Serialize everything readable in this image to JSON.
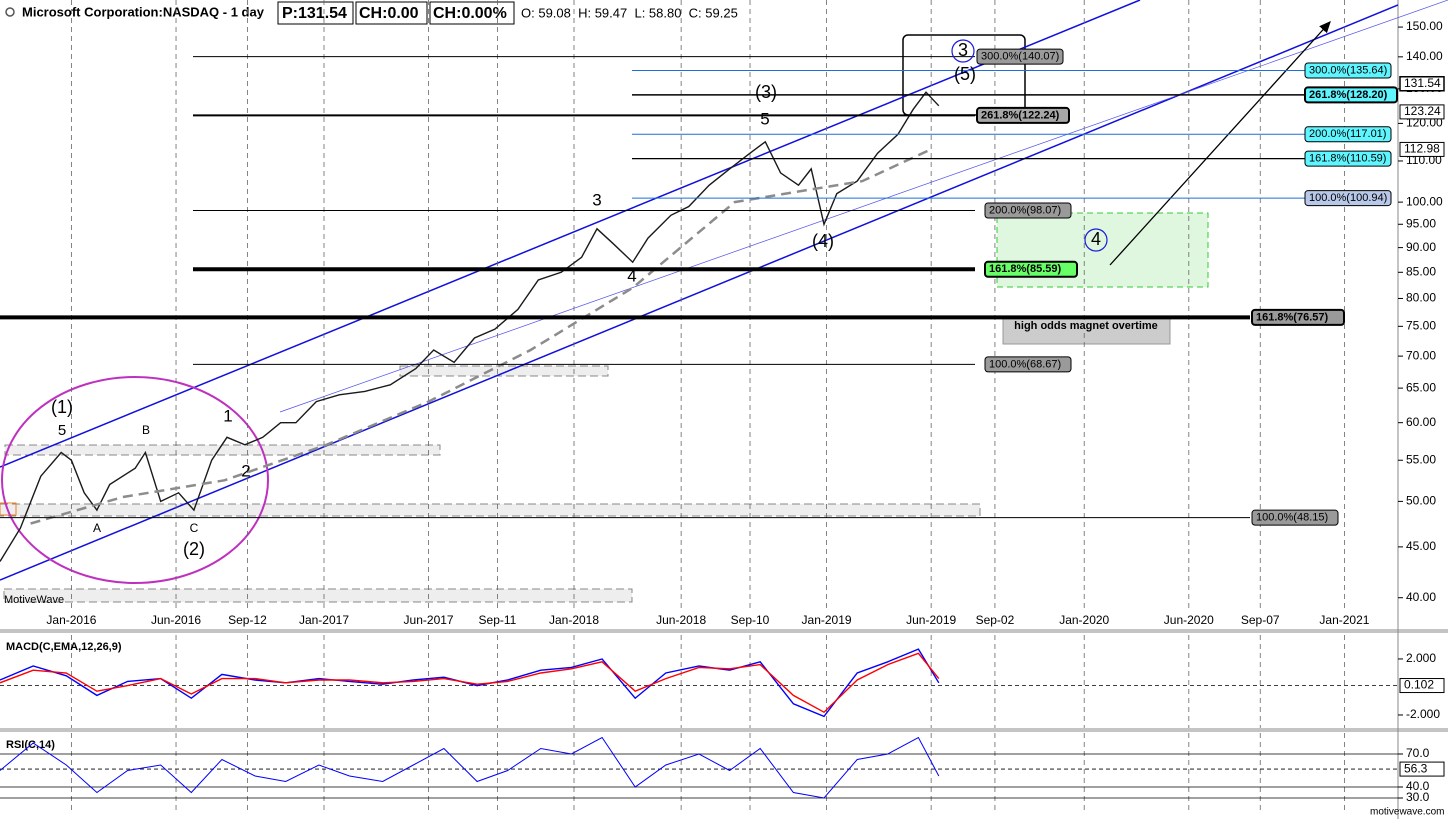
{
  "header": {
    "title": "Microsoft Corporation:NASDAQ - 1 day",
    "price": "P:131.54",
    "change": "CH:0.00",
    "change_pct": "CH:0.00%",
    "ohlc": "O: 59.08  H: 59.47  L: 58.80  C: 59.25"
  },
  "watermark": "MotiveWave",
  "footer": "motivewave.com",
  "chart_data": [
    {
      "type": "line",
      "log_scale": true,
      "grid": "x",
      "series": [
        {
          "color": "#1a1a1a",
          "x": [
            2015.72,
            2015.8,
            2015.88,
            2015.96,
            2016.0,
            2016.05,
            2016.1,
            2016.15,
            2016.25,
            2016.29,
            2016.35,
            2016.42,
            2016.48,
            2016.55,
            2016.61,
            2016.68,
            2016.75,
            2016.82,
            2016.88,
            2016.96,
            2017.05,
            2017.15,
            2017.25,
            2017.35,
            2017.42,
            2017.5,
            2017.58,
            2017.66,
            2017.75,
            2017.83,
            2017.92,
            2018.0,
            2018.06,
            2018.12,
            2018.2,
            2018.26,
            2018.35,
            2018.42,
            2018.5,
            2018.58,
            2018.66,
            2018.72,
            2018.78,
            2018.85,
            2018.9,
            2018.95,
            2019.0,
            2019.08,
            2019.16,
            2019.24,
            2019.3,
            2019.35,
            2019.4
          ],
          "values": [
            43.5,
            47,
            53,
            56,
            55,
            51,
            49,
            52,
            54,
            56,
            50,
            51,
            49,
            55,
            58,
            57,
            58,
            60,
            60,
            63,
            64,
            64.5,
            65.5,
            68,
            71,
            69,
            73,
            74.5,
            78,
            83.5,
            85,
            88,
            94,
            91,
            87,
            92,
            97,
            99,
            104,
            108,
            112,
            115,
            107,
            104,
            108,
            95,
            102,
            105,
            112,
            117,
            124,
            129,
            125
          ]
        },
        {
          "color": "#8c8c8c",
          "line_style": "dashed",
          "x": [
            2015.84,
            2016.2,
            2016.6,
            2017.0,
            2017.4,
            2017.8,
            2018.2,
            2018.6,
            2018.9,
            2019.1,
            2019.37
          ],
          "values": [
            47.5,
            50.5,
            52.5,
            57,
            63,
            71,
            82,
            100,
            103,
            105,
            113
          ]
        }
      ],
      "xlim": [
        2015.72,
        2021.2
      ],
      "xticks": [
        {
          "value": 2016.0,
          "label": "Jan-2016"
        },
        {
          "value": 2016.41,
          "label": "Jun-2016"
        },
        {
          "value": 2016.69,
          "label": "Sep-12"
        },
        {
          "value": 2016.99,
          "label": "Jan-2017"
        },
        {
          "value": 2017.4,
          "label": "Jun-2017"
        },
        {
          "value": 2017.67,
          "label": "Sep-11"
        },
        {
          "value": 2017.97,
          "label": "Jan-2018"
        },
        {
          "value": 2018.39,
          "label": "Jun-2018"
        },
        {
          "value": 2018.66,
          "label": "Sep-10"
        },
        {
          "value": 2018.96,
          "label": "Jan-2019"
        },
        {
          "value": 2019.37,
          "label": "Jun-2019"
        },
        {
          "value": 2019.62,
          "label": "Sep-02"
        },
        {
          "value": 2019.97,
          "label": "Jan-2020"
        },
        {
          "value": 2020.38,
          "label": "Jun-2020"
        },
        {
          "value": 2020.66,
          "label": "Sep-07"
        },
        {
          "value": 2020.99,
          "label": "Jan-2021"
        }
      ],
      "ylim": [
        38.7,
        159.7
      ],
      "yticks": [
        {
          "value": 40,
          "label": "40.00"
        },
        {
          "value": 45,
          "label": "45.00"
        },
        {
          "value": 50,
          "label": "50.00"
        },
        {
          "value": 55,
          "label": "55.00"
        },
        {
          "value": 60,
          "label": "60.00"
        },
        {
          "value": 65,
          "label": "65.00"
        },
        {
          "value": 70,
          "label": "70.00"
        },
        {
          "value": 75,
          "label": "75.00"
        },
        {
          "value": 80,
          "label": "80.00"
        },
        {
          "value": 85,
          "label": "85.00"
        },
        {
          "value": 90,
          "label": "90.00"
        },
        {
          "value": 95,
          "label": "95.00"
        },
        {
          "value": 100,
          "label": "100.00"
        },
        {
          "value": 110,
          "label": "110.00"
        },
        {
          "value": 120,
          "label": "120.00"
        },
        {
          "value": 130,
          "label": "130.00"
        },
        {
          "value": 140,
          "label": "140.00"
        },
        {
          "value": 150,
          "label": "150.00"
        }
      ],
      "price_markers": [
        131.54,
        123.24,
        112.98
      ],
      "fib_levels": [
        {
          "value": 140.07,
          "label": "300.0%(140.07)"
        },
        {
          "value": 135.64,
          "label": "300.0%(135.64)"
        },
        {
          "value": 128.2,
          "label": "261.8%(128.20)"
        },
        {
          "value": 122.24,
          "label": "261.8%(122.24)"
        },
        {
          "value": 117.01,
          "label": "200.0%(117.01)"
        },
        {
          "value": 110.59,
          "label": "161.8%(110.59)"
        },
        {
          "value": 100.94,
          "label": "100.0%(100.94)"
        },
        {
          "value": 98.07,
          "label": "200.0%(98.07)"
        },
        {
          "value": 85.59,
          "label": "161.8%(85.59)"
        },
        {
          "value": 76.57,
          "label": "161.8%(76.57)"
        },
        {
          "value": 68.67,
          "label": "100.0%(68.67)"
        },
        {
          "value": 48.15,
          "label": "100.0%(48.15)"
        }
      ],
      "annotations": [
        "(1)",
        "5",
        "B",
        "A",
        "C",
        "(2)",
        "1",
        "2",
        "3",
        "4",
        "5",
        "(3)",
        "(4)",
        "(5)",
        "3",
        "4",
        "high odds magnet overtime"
      ]
    },
    {
      "type": "line",
      "title": "MACD(C,EMA,12,26,9)",
      "x": [
        2015.72,
        2015.85,
        2015.98,
        2016.1,
        2016.22,
        2016.35,
        2016.47,
        2016.59,
        2016.72,
        2016.84,
        2016.97,
        2017.09,
        2017.22,
        2017.34,
        2017.46,
        2017.59,
        2017.71,
        2017.84,
        2017.96,
        2018.08,
        2018.21,
        2018.33,
        2018.46,
        2018.58,
        2018.7,
        2018.83,
        2018.95,
        2019.08,
        2019.2,
        2019.32,
        2019.4
      ],
      "series": [
        {
          "color": "#0000ff",
          "values": [
            0.5,
            1.5,
            0.8,
            -0.6,
            0.4,
            0.6,
            -0.8,
            0.9,
            0.5,
            0.3,
            0.6,
            0.4,
            0.2,
            0.5,
            0.7,
            0.1,
            0.5,
            1.2,
            1.4,
            2.0,
            -0.8,
            1.0,
            1.5,
            1.2,
            1.8,
            -1.2,
            -2.1,
            1.0,
            1.8,
            2.7,
            0.3
          ]
        },
        {
          "color": "#ff0000",
          "values": [
            0.3,
            1.2,
            1.0,
            -0.3,
            0.1,
            0.6,
            -0.5,
            0.6,
            0.6,
            0.3,
            0.5,
            0.5,
            0.3,
            0.4,
            0.6,
            0.2,
            0.4,
            1.0,
            1.3,
            1.8,
            -0.3,
            0.6,
            1.4,
            1.3,
            1.6,
            -0.6,
            -1.8,
            0.5,
            1.6,
            2.4,
            0.6
          ]
        }
      ],
      "ylim": [
        -2.93,
        3.71
      ],
      "yticks": [
        {
          "value": 2,
          "label": "2.000"
        },
        {
          "value": -2,
          "label": "-2.000"
        }
      ],
      "markers": [
        0.102
      ]
    },
    {
      "type": "line",
      "title": "RSI(C,14)",
      "grid": "y",
      "x": [
        2015.72,
        2015.85,
        2015.98,
        2016.1,
        2016.22,
        2016.35,
        2016.47,
        2016.59,
        2016.72,
        2016.84,
        2016.97,
        2017.09,
        2017.22,
        2017.34,
        2017.46,
        2017.59,
        2017.71,
        2017.84,
        2017.96,
        2018.08,
        2018.21,
        2018.33,
        2018.46,
        2018.58,
        2018.7,
        2018.83,
        2018.95,
        2019.08,
        2019.2,
        2019.32,
        2019.4
      ],
      "color": "#0000ff",
      "values": [
        55,
        80,
        60,
        35,
        55,
        60,
        35,
        65,
        50,
        45,
        60,
        50,
        45,
        60,
        75,
        45,
        55,
        75,
        70,
        85,
        40,
        60,
        70,
        55,
        75,
        35,
        30,
        65,
        70,
        85,
        50
      ],
      "ylim": [
        19.1,
        89.1
      ],
      "yticks": [
        {
          "value": 70,
          "label": "70.0"
        },
        {
          "value": 40,
          "label": "40.0"
        },
        {
          "value": 30,
          "label": "30.0"
        }
      ],
      "markers": [
        56.3
      ]
    }
  ]
}
